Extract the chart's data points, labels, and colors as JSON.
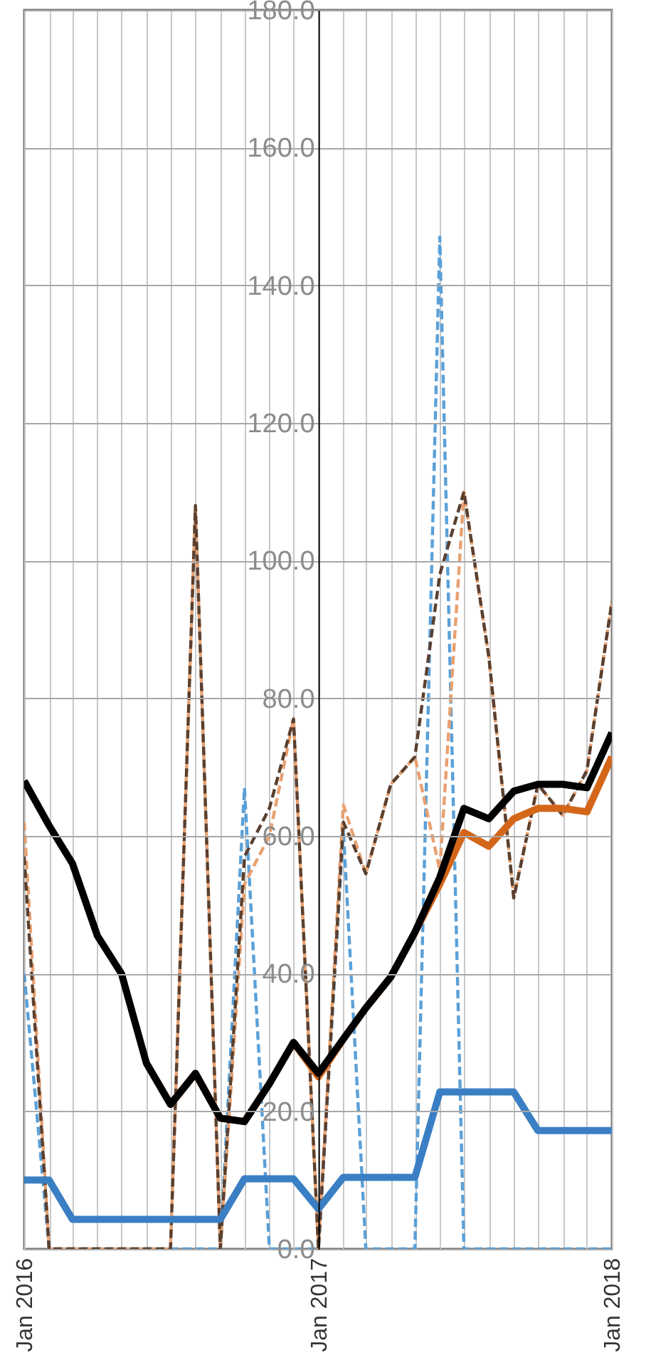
{
  "chart_data": {
    "type": "line",
    "x": [
      "2016-01",
      "2016-02",
      "2016-03",
      "2016-04",
      "2016-05",
      "2016-06",
      "2016-07",
      "2016-08",
      "2016-09",
      "2016-10",
      "2016-11",
      "2016-12",
      "2017-01",
      "2017-02",
      "2017-03",
      "2017-04",
      "2017-05",
      "2017-06",
      "2017-07",
      "2017-08",
      "2017-09",
      "2017-10",
      "2017-11",
      "2017-12",
      "2018-01"
    ],
    "series": [
      {
        "color": "#5aa0d8",
        "line_style": "dashed",
        "values": [
          40,
          0,
          0,
          0,
          0,
          0,
          0,
          0,
          0,
          67,
          0,
          0,
          0,
          61,
          0,
          0,
          0,
          147,
          0,
          0,
          0,
          0,
          0,
          0,
          0
        ]
      },
      {
        "color": "#e8a070",
        "line_style": "dashed",
        "values": [
          62,
          0,
          0,
          0,
          0,
          0,
          0,
          108,
          0,
          53,
          60,
          77,
          0,
          64.5,
          54.5,
          67.5,
          71.5,
          55,
          110,
          86,
          51,
          67.5,
          63,
          69.5,
          94
        ]
      },
      {
        "color": "#5a4030",
        "line_style": "dashed",
        "values": [
          57,
          0,
          0,
          0,
          0,
          0,
          0,
          108,
          0,
          57,
          64,
          77,
          0,
          62,
          54.5,
          67.5,
          71.5,
          98,
          110,
          86,
          51,
          67.5,
          63,
          69.5,
          94
        ]
      },
      {
        "color": "#d4661a",
        "line_style": "solid",
        "values": [
          null,
          null,
          null,
          null,
          null,
          27,
          21,
          25.5,
          19,
          18.5,
          24,
          30,
          25,
          30.5,
          35,
          39.5,
          46,
          53,
          60.5,
          58.5,
          62.5,
          64,
          64,
          63.5,
          71.5
        ]
      },
      {
        "color": "#000000",
        "line_style": "solid",
        "values": [
          68,
          61.5,
          56,
          45.5,
          40,
          27,
          21,
          25.5,
          19,
          18.5,
          24,
          30,
          25.5,
          30.5,
          35,
          39.5,
          46,
          54,
          64,
          62.5,
          66.5,
          67.5,
          67.5,
          67,
          75
        ]
      },
      {
        "color": "#3a7fc4",
        "line_style": "solid",
        "values": [
          10,
          10,
          4.3,
          4.3,
          4.3,
          4.3,
          4.3,
          4.3,
          4.3,
          10.2,
          10.2,
          10.2,
          5.8,
          10.4,
          10.4,
          10.4,
          10.4,
          22.8,
          22.8,
          22.8,
          22.8,
          17.2,
          17.2,
          17.2,
          17.2
        ]
      }
    ],
    "xlim": [
      "2016-01",
      "2018-01"
    ],
    "xticks": [
      {
        "value": "2016-01",
        "label": "Jan 2016"
      },
      {
        "value": "2016-02",
        "label": null
      },
      {
        "value": "2016-03",
        "label": null
      },
      {
        "value": "2016-04",
        "label": null
      },
      {
        "value": "2016-05",
        "label": null
      },
      {
        "value": "2016-06",
        "label": null
      },
      {
        "value": "2016-07",
        "label": null
      },
      {
        "value": "2016-08",
        "label": null
      },
      {
        "value": "2016-09",
        "label": null
      },
      {
        "value": "2016-10",
        "label": null
      },
      {
        "value": "2016-11",
        "label": null
      },
      {
        "value": "2016-12",
        "label": null
      },
      {
        "value": "2017-01",
        "label": "Jan 2017"
      },
      {
        "value": "2017-02",
        "label": null
      },
      {
        "value": "2017-03",
        "label": null
      },
      {
        "value": "2017-04",
        "label": null
      },
      {
        "value": "2017-05",
        "label": null
      },
      {
        "value": "2017-06",
        "label": null
      },
      {
        "value": "2017-07",
        "label": null
      },
      {
        "value": "2017-08",
        "label": null
      },
      {
        "value": "2017-09",
        "label": null
      },
      {
        "value": "2017-10",
        "label": null
      },
      {
        "value": "2017-11",
        "label": null
      },
      {
        "value": "2017-12",
        "label": null
      },
      {
        "value": "2018-01",
        "label": "Jan 2018"
      }
    ],
    "ylim": [
      0,
      180
    ],
    "yticks": [
      {
        "value": 0,
        "label": "0.0"
      },
      {
        "value": 20,
        "label": "20.0"
      },
      {
        "value": 40,
        "label": "40.0"
      },
      {
        "value": 60,
        "label": "60.0"
      },
      {
        "value": 80,
        "label": "80.0"
      },
      {
        "value": 100,
        "label": "100.0"
      },
      {
        "value": 120,
        "label": "120.0"
      },
      {
        "value": 140,
        "label": "140.0"
      },
      {
        "value": 160,
        "label": "160.0"
      },
      {
        "value": 180,
        "label": "180.0"
      }
    ],
    "grid": true
  }
}
